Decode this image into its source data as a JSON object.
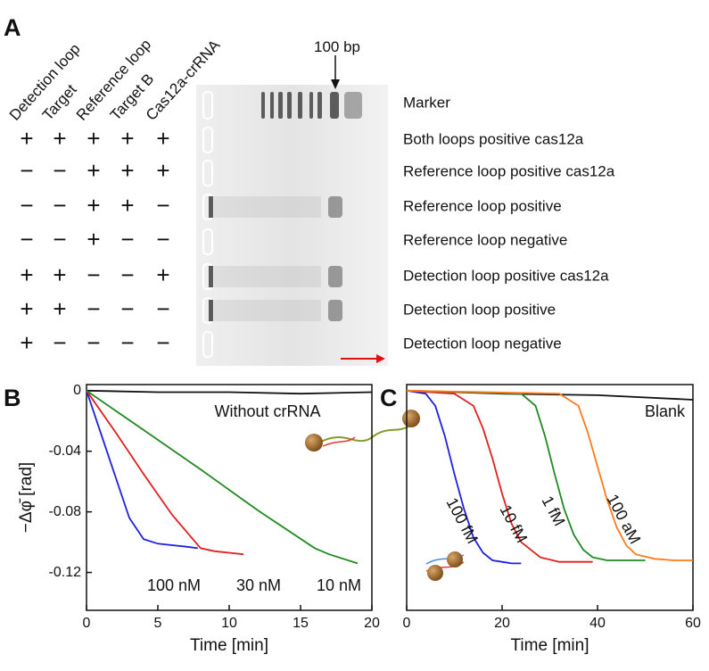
{
  "panel_a": {
    "panel_label": "A",
    "columns": [
      "Detection loop",
      "Target",
      "Reference loop",
      "Target B",
      "Cas12a-crRNA"
    ],
    "marker_label": "100 bp",
    "rows": [
      {
        "label": "Marker",
        "signs": []
      },
      {
        "label": "Both loops positive cas12a",
        "signs": [
          "+",
          "+",
          "+",
          "+",
          "+"
        ]
      },
      {
        "label": "Reference loop positive cas12a",
        "signs": [
          "−",
          "−",
          "+",
          "+",
          "+"
        ]
      },
      {
        "label": "Reference loop positive",
        "signs": [
          "−",
          "−",
          "+",
          "+",
          "−"
        ]
      },
      {
        "label": "Reference loop negative",
        "signs": [
          "−",
          "−",
          "+",
          "−",
          "−"
        ]
      },
      {
        "label": "Detection loop positive cas12a",
        "signs": [
          "+",
          "+",
          "−",
          "−",
          "+"
        ]
      },
      {
        "label": "Detection loop positive",
        "signs": [
          "+",
          "+",
          "−",
          "−",
          "−"
        ]
      },
      {
        "label": "Detection loop negative",
        "signs": [
          "+",
          "−",
          "−",
          "−",
          "−"
        ]
      }
    ]
  },
  "chart_data": [
    {
      "type": "line",
      "panel_label": "B",
      "annotation": "Without crRNA",
      "x_label": "Time [min]",
      "y_label": "−Δφ̄ [rad]",
      "xlim": [
        0,
        20
      ],
      "xticks": [
        0,
        5,
        10,
        15,
        20
      ],
      "ylim": [
        -0.145,
        0.004
      ],
      "yticks": [
        0,
        -0.04,
        -0.08,
        -0.12
      ],
      "series": [
        {
          "color": "#111111",
          "x": [
            0,
            5,
            10,
            15,
            20
          ],
          "values": [
            0,
            -0.001,
            -0.001,
            -0.002,
            -0.001
          ]
        },
        {
          "name": "100 nM",
          "color": "#1f1fe0",
          "x": [
            0,
            1,
            2,
            3,
            4,
            5,
            6,
            7,
            7.8
          ],
          "values": [
            0,
            -0.028,
            -0.056,
            -0.084,
            -0.098,
            -0.101,
            -0.102,
            -0.103,
            -0.104
          ]
        },
        {
          "name": "30 nM",
          "color": "#e01f1f",
          "x": [
            0,
            2,
            4,
            6,
            8,
            9,
            10,
            11
          ],
          "values": [
            0,
            -0.027,
            -0.055,
            -0.082,
            -0.104,
            -0.106,
            -0.107,
            -0.108
          ]
        },
        {
          "name": "10 nM",
          "color": "#1f8a1f",
          "x": [
            0,
            4,
            8,
            12,
            16,
            17,
            18,
            19
          ],
          "values": [
            0,
            -0.026,
            -0.052,
            -0.079,
            -0.104,
            -0.108,
            -0.111,
            -0.114
          ]
        }
      ]
    },
    {
      "type": "line",
      "panel_label": "C",
      "annotation": "Blank",
      "x_label": "Time [min]",
      "xlim": [
        0,
        60
      ],
      "xticks": [
        0,
        20,
        40,
        60
      ],
      "ylim": [
        -0.145,
        0.004
      ],
      "series": [
        {
          "color": "#111111",
          "x": [
            0,
            20,
            40,
            60
          ],
          "values": [
            0,
            -0.002,
            -0.003,
            -0.006
          ]
        },
        {
          "name": "100 fM",
          "color": "#1f1fe0",
          "x": [
            0,
            4,
            6,
            8,
            10,
            12,
            14,
            16,
            18,
            20,
            22,
            24
          ],
          "values": [
            0,
            -0.002,
            -0.01,
            -0.03,
            -0.055,
            -0.078,
            -0.097,
            -0.107,
            -0.112,
            -0.113,
            -0.114,
            -0.114
          ]
        },
        {
          "name": "10 fM",
          "color": "#e01f1f",
          "x": [
            0,
            10,
            14,
            16,
            18,
            20,
            22,
            24,
            28,
            32,
            36,
            39
          ],
          "values": [
            0,
            -0.002,
            -0.01,
            -0.025,
            -0.045,
            -0.068,
            -0.088,
            -0.1,
            -0.11,
            -0.113,
            -0.113,
            -0.113
          ]
        },
        {
          "name": "1 fM",
          "color": "#1f8a1f",
          "x": [
            0,
            24,
            27,
            29,
            31,
            33,
            35,
            37,
            39,
            42,
            46,
            50
          ],
          "values": [
            0,
            -0.002,
            -0.01,
            -0.03,
            -0.055,
            -0.078,
            -0.095,
            -0.105,
            -0.11,
            -0.112,
            -0.112,
            -0.112
          ]
        },
        {
          "name": "100 aM",
          "color": "#ff7a1a",
          "x": [
            0,
            32,
            36,
            38,
            40,
            42,
            44,
            46,
            48,
            52,
            56,
            60
          ],
          "values": [
            0,
            -0.002,
            -0.01,
            -0.028,
            -0.05,
            -0.072,
            -0.09,
            -0.102,
            -0.108,
            -0.111,
            -0.112,
            -0.112
          ]
        }
      ]
    }
  ]
}
